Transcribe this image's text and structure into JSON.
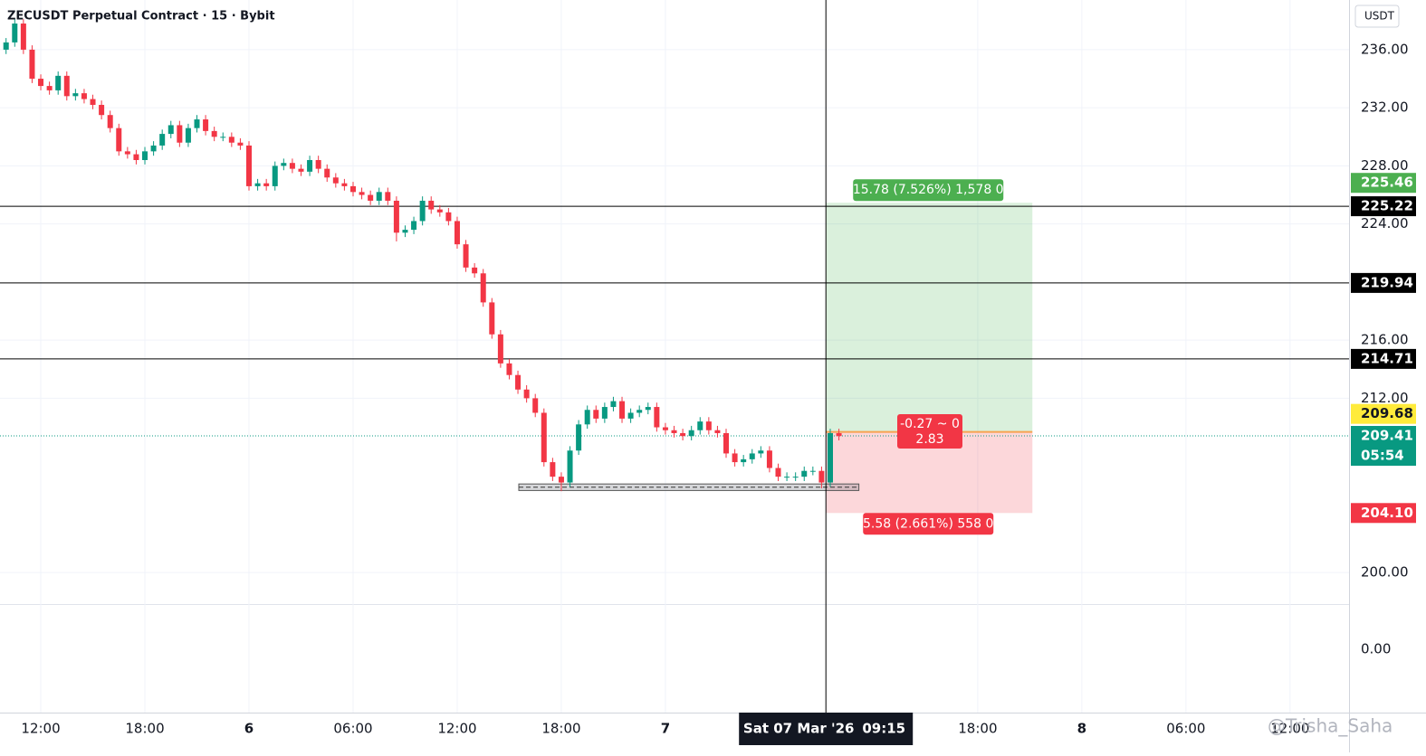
{
  "chart_data": {
    "type": "candlestick",
    "title": "ZECUSDT Perpetual Contract · 15 · Bybit",
    "currency": "USDT",
    "up_color": "#089981",
    "down_color": "#f23645",
    "grid": true,
    "ylim": [
      197.83,
      239.42
    ],
    "xlim": [
      -0.7,
      154.8
    ],
    "yticks": [
      {
        "value": 236,
        "label": "236.00"
      },
      {
        "value": 232,
        "label": "232.00"
      },
      {
        "value": 228,
        "label": "228.00"
      },
      {
        "value": 224,
        "label": "224.00"
      },
      {
        "value": 216,
        "label": "216.00"
      },
      {
        "value": 212,
        "label": "212.00"
      },
      {
        "value": 200,
        "label": "200.00"
      }
    ],
    "xticks": [
      {
        "value": 4,
        "label": "12:00"
      },
      {
        "value": 16,
        "label": "18:00"
      },
      {
        "value": 28,
        "label": "6"
      },
      {
        "value": 40,
        "label": "06:00"
      },
      {
        "value": 52,
        "label": "12:00"
      },
      {
        "value": 64,
        "label": "18:00"
      },
      {
        "value": 76,
        "label": "7"
      },
      {
        "value": 112,
        "label": "18:00"
      },
      {
        "value": 124,
        "label": "8"
      },
      {
        "value": 136,
        "label": "06:00"
      },
      {
        "value": 148,
        "label": "12:00"
      }
    ],
    "open": [
      236,
      236.5,
      237.8,
      236,
      234,
      233.5,
      233.2,
      234.2,
      232.8,
      233,
      232.6,
      232.2,
      231.5,
      230.6,
      229,
      228.8,
      228.4,
      229,
      229.4,
      230.2,
      230.8,
      229.6,
      230.6,
      231.2,
      230.4,
      230,
      230,
      229.6,
      229.4,
      226.6,
      226.8,
      226.6,
      228,
      228.2,
      227.8,
      227.6,
      228.4,
      227.8,
      227.2,
      226.8,
      226.6,
      226.2,
      226,
      225.6,
      226.2,
      225.6,
      223.4,
      223.6,
      224.2,
      225.6,
      225,
      224.8,
      224.2,
      222.6,
      221,
      220.6,
      218.6,
      216.4,
      214.4,
      213.6,
      212.6,
      212,
      211,
      207.6,
      206.6,
      206.2,
      208.4,
      210.2,
      211.2,
      210.6,
      211.4,
      211.8,
      210.6,
      211,
      211.2,
      211.4,
      210,
      209.8,
      209.6,
      209.4,
      209.8,
      210.4,
      209.8,
      209.6,
      208.2,
      207.6,
      207.8,
      208.2,
      208.4,
      207.2,
      206.6,
      206.6,
      206.6,
      207,
      207,
      206.2,
      209.6
    ],
    "high": [
      236.8,
      238.1,
      238.1,
      236.3,
      234.3,
      233.8,
      234.5,
      234.5,
      233.3,
      233.3,
      232.9,
      232.5,
      231.8,
      230.9,
      229.3,
      229.1,
      229.3,
      229.7,
      230.5,
      231.1,
      231.1,
      230.9,
      231.5,
      231.5,
      230.7,
      230.3,
      230.3,
      229.9,
      229.7,
      227.1,
      227.1,
      228.3,
      228.5,
      228.5,
      228.1,
      228.7,
      228.7,
      228.1,
      227.5,
      227.1,
      226.9,
      226.5,
      226.3,
      226.5,
      226.5,
      225.9,
      223.9,
      224.5,
      225.9,
      225.9,
      225.3,
      225.1,
      224.5,
      222.9,
      221.3,
      220.9,
      218.9,
      216.7,
      214.7,
      213.9,
      212.9,
      212.3,
      211.3,
      207.9,
      206.9,
      208.7,
      210.5,
      211.5,
      211.5,
      211.7,
      212.1,
      212.1,
      211.3,
      211.5,
      211.7,
      211.7,
      210.3,
      210.1,
      209.9,
      210.1,
      210.7,
      210.7,
      210.1,
      209.9,
      208.5,
      208.1,
      208.5,
      208.7,
      208.7,
      207.5,
      206.9,
      206.9,
      207.3,
      207.3,
      207.3,
      209.9,
      209.9
    ],
    "low": [
      235.7,
      236.2,
      235.7,
      233.7,
      233.2,
      232.9,
      232.9,
      232.5,
      232.5,
      232.3,
      231.9,
      231.2,
      230.3,
      228.7,
      228.5,
      228.1,
      228.1,
      228.7,
      229.1,
      229.9,
      229.3,
      229.3,
      230.3,
      230.1,
      229.7,
      229.7,
      229.3,
      229.1,
      226.3,
      226.3,
      226.3,
      226.3,
      227.7,
      227.5,
      227.3,
      227.3,
      227.5,
      226.9,
      226.5,
      226.3,
      225.9,
      225.7,
      225.3,
      225.3,
      225.3,
      222.8,
      223.1,
      223.3,
      223.9,
      224.7,
      224.5,
      223.9,
      222.3,
      220.7,
      220.3,
      218.3,
      216.1,
      214.1,
      213.3,
      212.3,
      211.7,
      210.7,
      207.3,
      206.3,
      205.6,
      205.9,
      208.1,
      209.9,
      210.3,
      210.3,
      211.1,
      210.3,
      210.3,
      210.7,
      210.9,
      209.7,
      209.5,
      209.3,
      209.1,
      209.1,
      209.5,
      209.5,
      209.3,
      207.9,
      207.3,
      207.3,
      207.5,
      207.9,
      206.9,
      206.3,
      206.3,
      206.3,
      206.3,
      206.7,
      205.8,
      205.9,
      209.1
    ],
    "close": [
      236.5,
      237.8,
      236,
      234,
      233.5,
      233.2,
      234.2,
      232.8,
      233,
      232.6,
      232.2,
      231.5,
      230.6,
      229,
      228.8,
      228.4,
      229,
      229.4,
      230.2,
      230.8,
      229.6,
      230.6,
      231.2,
      230.4,
      230,
      230,
      229.6,
      229.4,
      226.6,
      226.8,
      226.6,
      228,
      228.2,
      227.8,
      227.6,
      228.4,
      227.8,
      227.2,
      226.8,
      226.6,
      226.2,
      226,
      225.6,
      226.2,
      225.6,
      223.4,
      223.6,
      224.2,
      225.6,
      225,
      224.8,
      224.2,
      222.6,
      221,
      220.6,
      218.6,
      216.4,
      214.4,
      213.6,
      212.6,
      212,
      211,
      207.6,
      206.6,
      206.2,
      208.4,
      210.2,
      211.2,
      210.6,
      211.4,
      211.8,
      210.6,
      211,
      211.2,
      211.4,
      210,
      209.8,
      209.6,
      209.4,
      209.8,
      210.4,
      209.8,
      209.6,
      208.2,
      207.6,
      207.8,
      208.2,
      208.4,
      207.2,
      206.6,
      206.6,
      206.6,
      207,
      207,
      206.2,
      209.6,
      209.4
    ],
    "levels": [
      225.22,
      219.94,
      214.71
    ],
    "last_price": 209.41,
    "countdown": "05:54",
    "position": {
      "target": 225.46,
      "entry": 209.68,
      "stop": {
        "value": 204.1,
        "label": "204.10"
      },
      "x_start": 94.5,
      "x_end": 118.3,
      "target_label": "15.78 (7.526%) 1,578 0",
      "stop_label": "5.58 (2.661%) 558 0",
      "pnl_label": "-0.27 ~ 0",
      "ratio": 2.83
    },
    "zone": {
      "top": 206.1,
      "bottom": 205.65,
      "x_start": 59.1,
      "x_end": 98.3
    },
    "crosshair": {
      "x": 94.5,
      "date": "Sat 07 Mar '26",
      "time": "09:15"
    },
    "lower_pane": {
      "yticks": [
        {
          "value": 0,
          "label": "0.00"
        }
      ]
    },
    "watermark": "@Trisha_Saha"
  }
}
